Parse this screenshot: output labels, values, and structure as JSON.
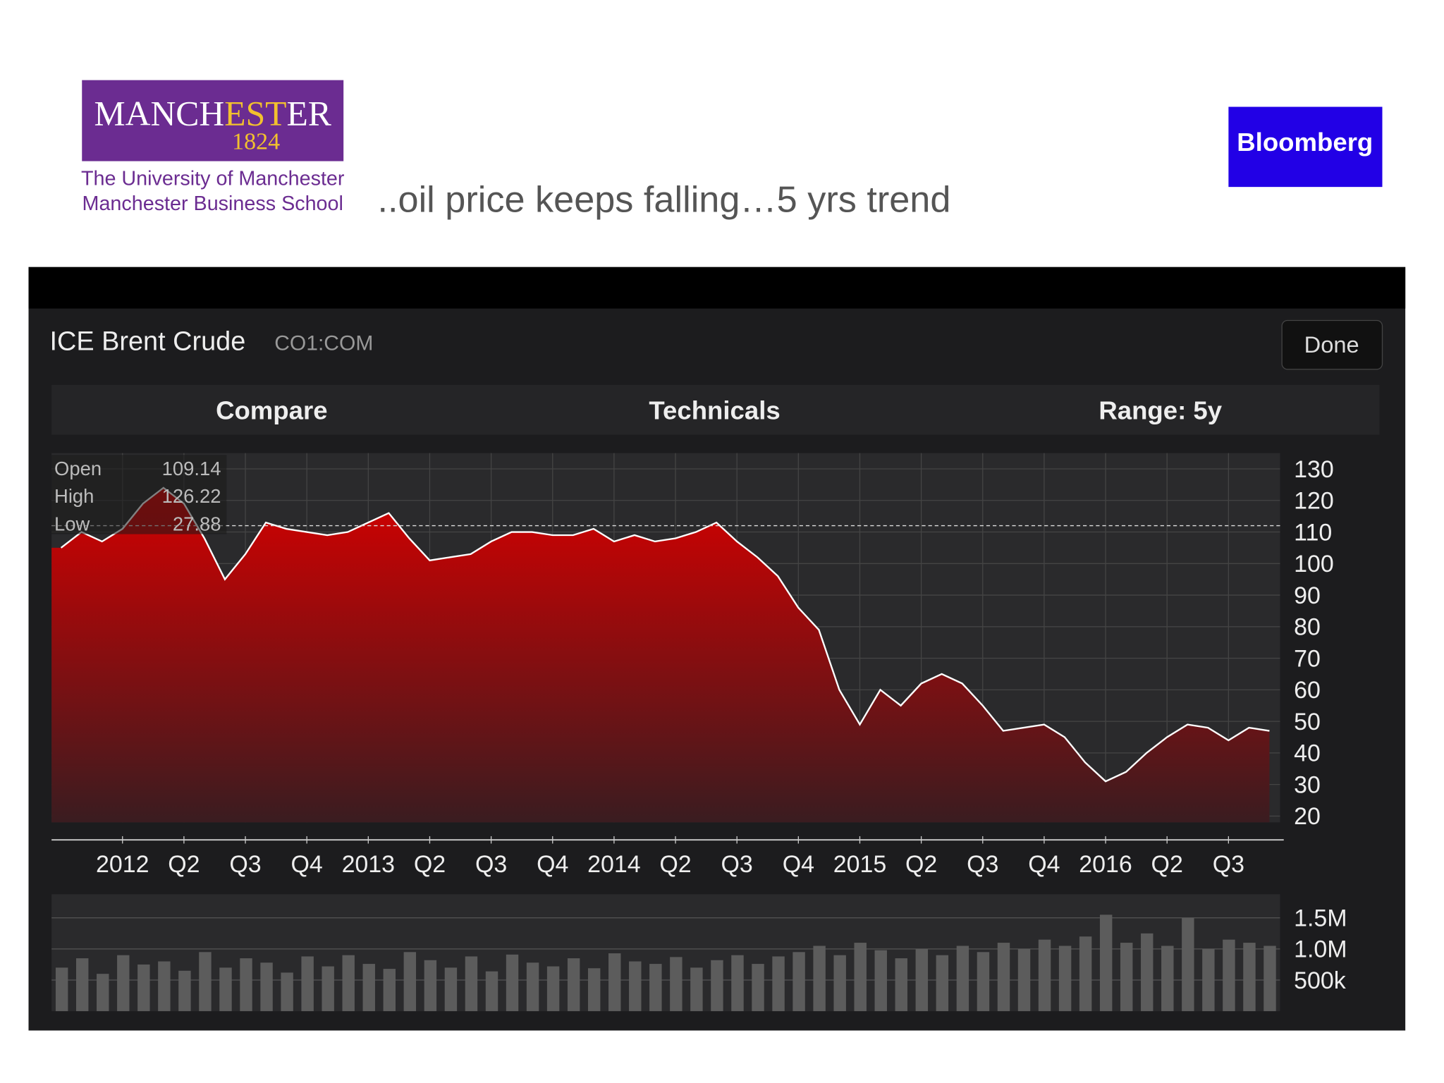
{
  "header": {
    "logo": {
      "name_parts": [
        "MANCH",
        "EST",
        "ER"
      ],
      "year": "1824",
      "line1": "The University of Manchester",
      "line2": "Manchester Business School"
    },
    "title": "..oil price keeps falling…5 yrs trend",
    "brand": "Bloomberg"
  },
  "panel": {
    "instrument": "ICE Brent Crude",
    "ticker": "CO1:COM",
    "button": "Done",
    "tabs": [
      "Compare",
      "Technicals",
      "Range: 5y"
    ]
  },
  "chart_data": [
    {
      "type": "area",
      "categories": [
        null,
        null,
        null,
        "2012",
        null,
        null,
        "Q2",
        null,
        null,
        "Q3",
        null,
        null,
        "Q4",
        null,
        null,
        "2013",
        null,
        null,
        "Q2",
        null,
        null,
        "Q3",
        null,
        null,
        "Q4",
        null,
        null,
        "2014",
        null,
        null,
        "Q2",
        null,
        null,
        "Q3",
        null,
        null,
        "Q4",
        null,
        null,
        "2015",
        null,
        null,
        "Q2",
        null,
        null,
        "Q3",
        null,
        null,
        "Q4",
        null,
        null,
        "2016",
        null,
        null,
        "Q2",
        null,
        null,
        "Q3",
        null,
        null
      ],
      "values": [
        105,
        110,
        107,
        111,
        119,
        124,
        119,
        108,
        95,
        103,
        113,
        111,
        110,
        109,
        110,
        113,
        116,
        108,
        101,
        102,
        103,
        107,
        110,
        110,
        109,
        109,
        111,
        107,
        109,
        107,
        108,
        110,
        113,
        107,
        102,
        96,
        86,
        79,
        60,
        49,
        60,
        55,
        62,
        65,
        62,
        55,
        47,
        48,
        49,
        45,
        37,
        31,
        34,
        40,
        45,
        49,
        48,
        44,
        48,
        47
      ],
      "color": "#d40000",
      "ylim": [
        18,
        135
      ],
      "yticks": [
        20,
        30,
        40,
        50,
        60,
        70,
        80,
        90,
        100,
        110,
        120,
        130
      ],
      "grid": true,
      "reference_line": 112,
      "summary": {
        "labels": [
          "Open",
          "High",
          "Low"
        ],
        "values": [
          109.14,
          126.22,
          27.88
        ]
      }
    },
    {
      "type": "bar",
      "values": [
        700000,
        850000,
        600000,
        900000,
        750000,
        800000,
        650000,
        950000,
        700000,
        850000,
        780000,
        620000,
        880000,
        720000,
        900000,
        760000,
        680000,
        950000,
        820000,
        700000,
        880000,
        640000,
        910000,
        780000,
        720000,
        850000,
        690000,
        930000,
        800000,
        760000,
        870000,
        700000,
        820000,
        900000,
        760000,
        880000,
        950000,
        1050000,
        900000,
        1100000,
        980000,
        850000,
        1000000,
        900000,
        1050000,
        950000,
        1100000,
        1000000,
        1150000,
        1050000,
        1200000,
        1550000,
        1100000,
        1250000,
        1050000,
        1500000,
        1000000,
        1150000,
        1100000,
        1050000
      ],
      "color": "#5c5c5c",
      "ylim": [
        0,
        1880000
      ],
      "yticks": [
        {
          "value": 1500000,
          "label": "1.5M"
        },
        {
          "value": 1000000,
          "label": "1.0M"
        },
        {
          "value": 500000,
          "label": "500k"
        }
      ],
      "grid": true
    }
  ]
}
